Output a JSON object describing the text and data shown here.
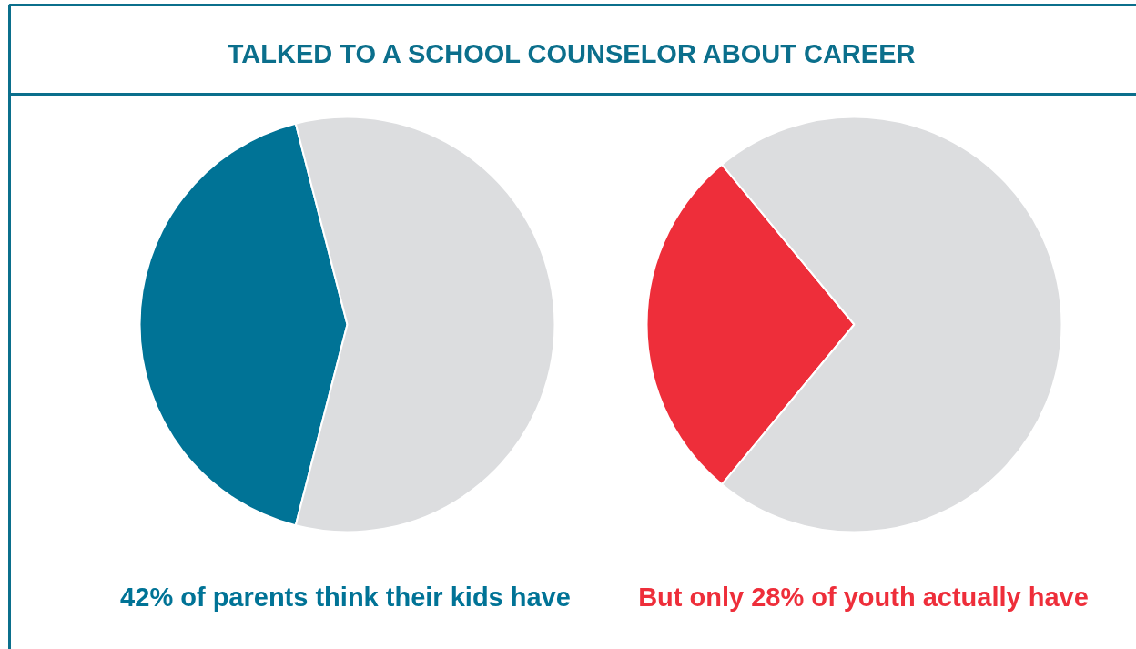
{
  "chart_data": [
    {
      "type": "pie",
      "title": "TALKED TO A SCHOOL COUNSELOR ABOUT CAREER",
      "categories": [
        null,
        null
      ],
      "values": [
        42,
        58
      ],
      "colors": [
        "#007396",
        "#dcdddf"
      ],
      "annotations": [
        "42% of parents think their kids have"
      ]
    },
    {
      "type": "pie",
      "categories": [
        null,
        null
      ],
      "values": [
        28,
        72
      ],
      "colors": [
        "#ee2e3a",
        "#dcdddf"
      ],
      "annotations": [
        "But only 28% of youth actually have"
      ]
    }
  ]
}
